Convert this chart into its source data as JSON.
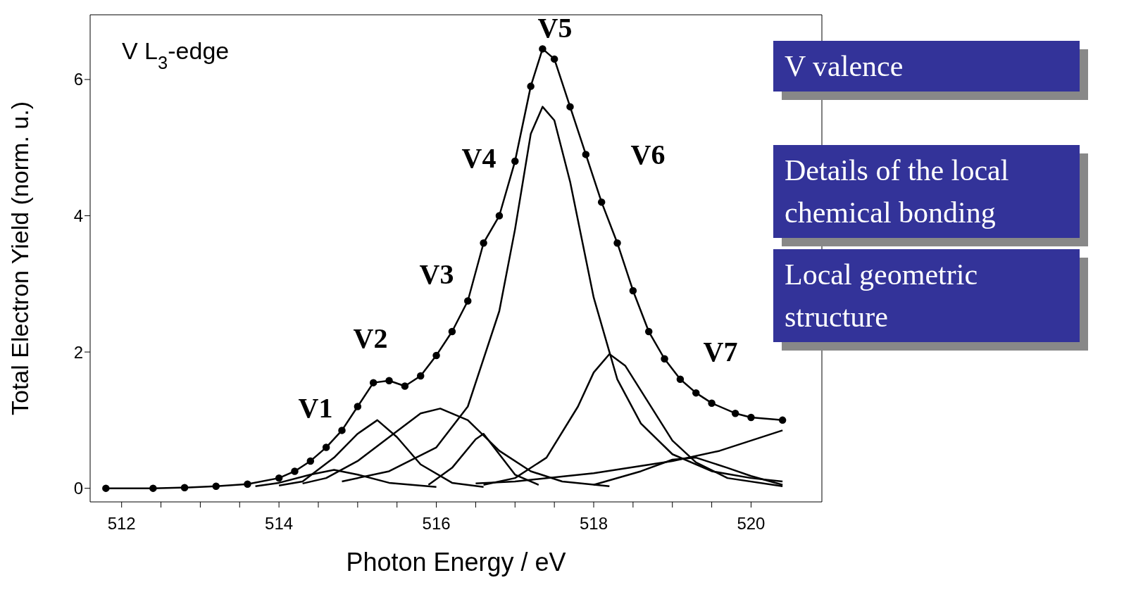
{
  "chart_data": {
    "type": "line",
    "xlabel": "Photon Energy / eV",
    "ylabel": "Total Electron Yield (norm. u.)",
    "xlim": [
      511.6,
      520.9
    ],
    "ylim": [
      -0.2,
      6.95
    ],
    "xticks": [
      512,
      {
        "value": 512.5,
        "label": null
      },
      {
        "value": 513,
        "label": null
      },
      {
        "value": 513.5,
        "label": null
      },
      514,
      {
        "value": 514.5,
        "label": null
      },
      {
        "value": 515,
        "label": null
      },
      {
        "value": 515.5,
        "label": null
      },
      516,
      {
        "value": 516.5,
        "label": null
      },
      {
        "value": 517,
        "label": null
      },
      {
        "value": 517.5,
        "label": null
      },
      518,
      {
        "value": 518.5,
        "label": null
      },
      {
        "value": 519,
        "label": null
      },
      {
        "value": 519.5,
        "label": null
      },
      520
    ],
    "yticks": [
      0,
      2,
      4,
      6
    ],
    "line_style": "solid",
    "series": [
      {
        "color": "#000000",
        "marker": "circle",
        "x": [
          511.8,
          512.4,
          512.8,
          513.2,
          513.6,
          514.0,
          514.2,
          514.4,
          514.6,
          514.8,
          515.0,
          515.2,
          515.4,
          515.6,
          515.8,
          516.0,
          516.2,
          516.4,
          516.6,
          516.8,
          517.0,
          517.2,
          517.35,
          517.5,
          517.7,
          517.9,
          518.1,
          518.3,
          518.5,
          518.7,
          518.9,
          519.1,
          519.3,
          519.5,
          519.8,
          520.0,
          520.4
        ],
        "values": [
          0,
          0,
          0.01,
          0.03,
          0.06,
          0.15,
          0.25,
          0.4,
          0.6,
          0.85,
          1.2,
          1.55,
          1.58,
          1.5,
          1.65,
          1.95,
          2.3,
          2.75,
          3.6,
          4.0,
          4.8,
          5.9,
          6.45,
          6.3,
          5.6,
          4.9,
          4.2,
          3.6,
          2.9,
          2.3,
          1.9,
          1.6,
          1.4,
          1.25,
          1.1,
          1.04,
          1.0
        ]
      },
      {
        "color": "#000000",
        "marker": "none",
        "x": [
          513.7,
          514.0,
          514.4,
          514.7,
          515.0,
          515.4,
          516.0
        ],
        "values": [
          0.03,
          0.08,
          0.2,
          0.27,
          0.2,
          0.08,
          0.02
        ]
      },
      {
        "color": "#000000",
        "marker": "none",
        "x": [
          514.0,
          514.3,
          514.7,
          515.0,
          515.25,
          515.5,
          515.8,
          516.2,
          516.6
        ],
        "values": [
          0.04,
          0.1,
          0.45,
          0.8,
          1.0,
          0.75,
          0.35,
          0.08,
          0.02
        ]
      },
      {
        "color": "#000000",
        "marker": "none",
        "x": [
          514.3,
          514.6,
          515.0,
          515.4,
          515.8,
          516.05,
          516.4,
          516.8,
          517.2,
          517.6,
          518.2
        ],
        "values": [
          0.07,
          0.15,
          0.4,
          0.75,
          1.1,
          1.17,
          1.0,
          0.55,
          0.25,
          0.1,
          0.03
        ]
      },
      {
        "color": "#000000",
        "marker": "none",
        "x": [
          515.9,
          516.2,
          516.5,
          516.6,
          516.8,
          517.0,
          517.3
        ],
        "values": [
          0.05,
          0.3,
          0.72,
          0.8,
          0.5,
          0.2,
          0.05
        ]
      },
      {
        "color": "#000000",
        "marker": "none",
        "x": [
          514.8,
          515.4,
          516.0,
          516.4,
          516.8,
          517.0,
          517.2,
          517.35,
          517.5,
          517.7,
          518.0,
          518.3,
          518.6,
          519.0,
          519.5,
          520.0,
          520.4
        ],
        "values": [
          0.1,
          0.25,
          0.6,
          1.2,
          2.6,
          3.8,
          5.2,
          5.6,
          5.4,
          4.5,
          2.8,
          1.6,
          0.95,
          0.5,
          0.25,
          0.15,
          0.1
        ]
      },
      {
        "color": "#000000",
        "marker": "none",
        "x": [
          516.6,
          517.0,
          517.4,
          517.8,
          518.0,
          518.2,
          518.4,
          518.7,
          519.0,
          519.3,
          519.7,
          520.4
        ],
        "values": [
          0.05,
          0.15,
          0.45,
          1.2,
          1.7,
          1.97,
          1.8,
          1.25,
          0.7,
          0.38,
          0.15,
          0.03
        ]
      },
      {
        "color": "#000000",
        "marker": "none",
        "x": [
          518.0,
          518.6,
          519.0,
          519.3,
          519.7,
          520.0,
          520.4
        ],
        "values": [
          0.05,
          0.25,
          0.42,
          0.45,
          0.3,
          0.18,
          0.05
        ]
      },
      {
        "color": "#000000",
        "marker": "none",
        "x": [
          516.5,
          517.0,
          518.0,
          519.0,
          519.6,
          520.0,
          520.4
        ],
        "values": [
          0.07,
          0.1,
          0.22,
          0.4,
          0.55,
          0.7,
          0.85
        ]
      }
    ],
    "annotations": [
      "V L$_{3}$-edge",
      "V1",
      "V2",
      "V3",
      "V4",
      "V5",
      "V6",
      "V7",
      "V valence",
      "Details of the local chemical bonding",
      "Local geometric structure"
    ]
  }
}
